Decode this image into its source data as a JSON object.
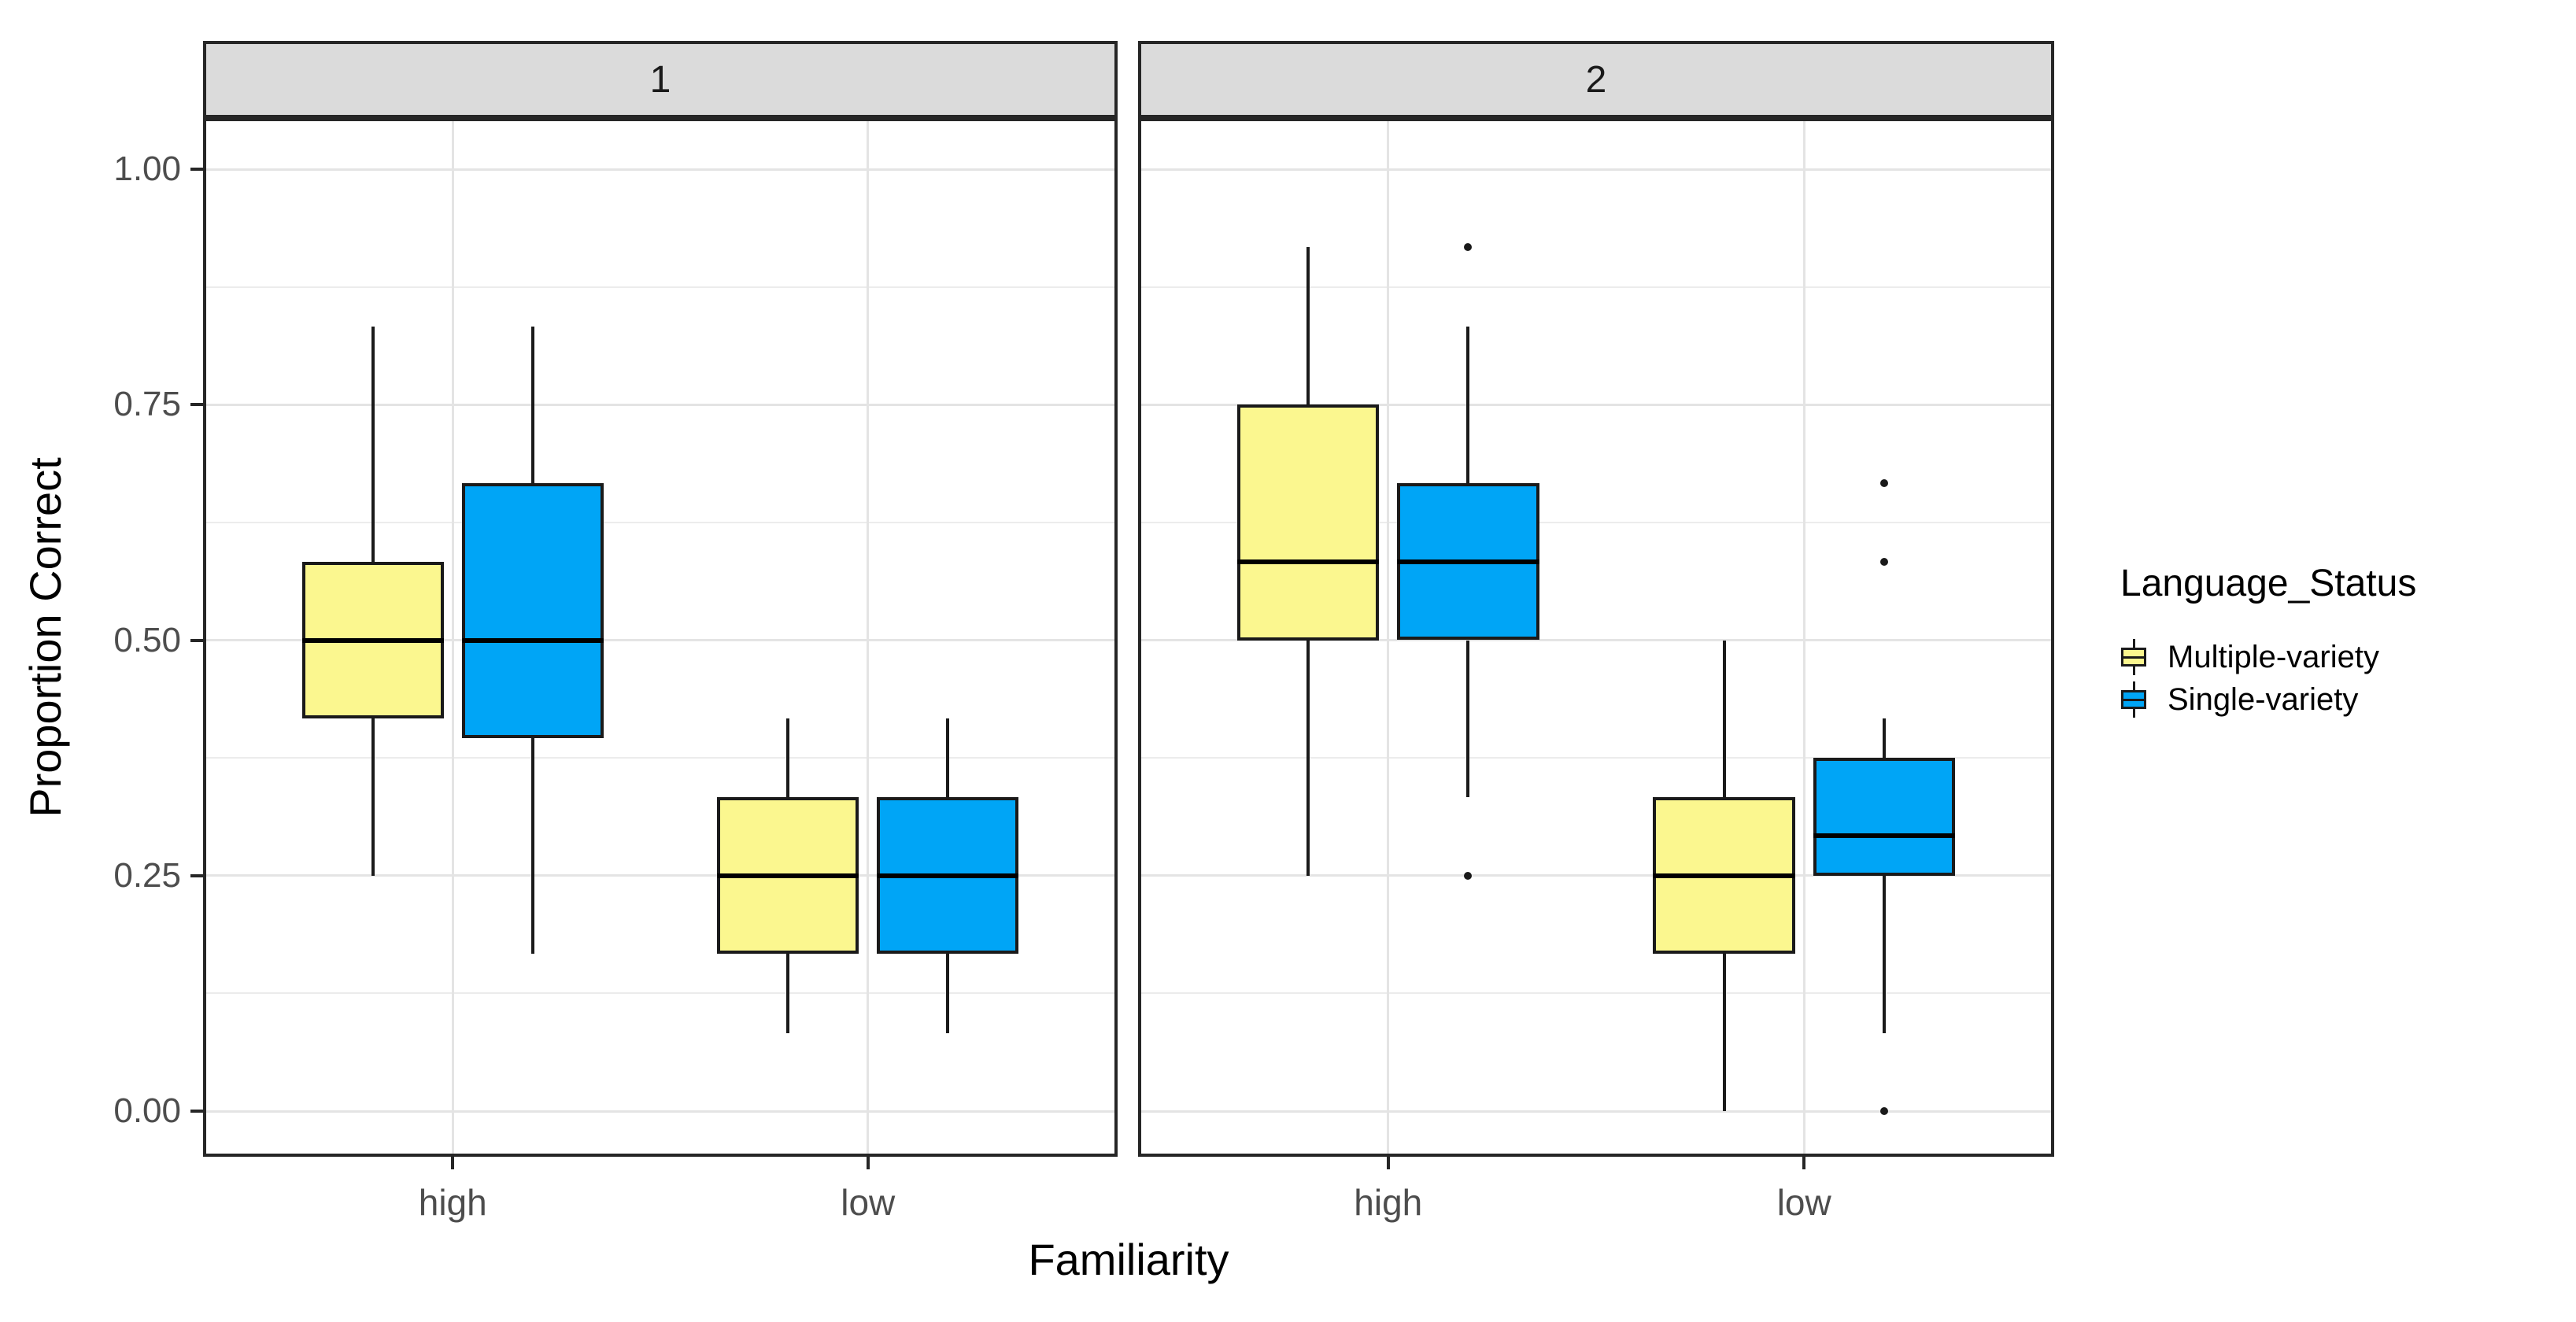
{
  "chart_data": {
    "type": "boxplot",
    "title": "",
    "xlabel": "Familiarity",
    "ylabel": "Proportion Correct",
    "ylim": [
      0,
      1
    ],
    "grid": "on",
    "legend_position": "right",
    "y_axis": {
      "ticks": [
        {
          "value": 1.0,
          "label": "1.00"
        },
        {
          "value": 0.75,
          "label": "0.75"
        },
        {
          "value": 0.5,
          "label": "0.50"
        },
        {
          "value": 0.25,
          "label": "0.25"
        },
        {
          "value": 0.0,
          "label": "0.00"
        }
      ],
      "minor_gridlines": [
        0.875,
        0.625,
        0.375,
        0.125
      ]
    },
    "series": [
      {
        "name": "Multiple-variety",
        "color": "#FBF78F"
      },
      {
        "name": "Single-variety",
        "color": "#00A5F6"
      }
    ],
    "style": {
      "strip_background": "#DBDBDB",
      "panel_border": "#262626",
      "major_gridline_color": "#E4E4E4",
      "minor_gridline_color": "#ECECEC",
      "box_outline": "#1a1a1a",
      "tick_label_color": "#4d4d4d"
    },
    "legend": {
      "title": "Language_Status",
      "items": [
        {
          "label": "Multiple-variety",
          "color": "#FBF78F"
        },
        {
          "label": "Single-variety",
          "color": "#00A5F6"
        }
      ]
    },
    "facets": [
      {
        "label": "1",
        "groups": [
          {
            "category": "high",
            "boxes": [
              {
                "series": "Multiple-variety",
                "min": 0.25,
                "q1": 0.417,
                "median": 0.5,
                "q3": 0.583,
                "max": 0.833,
                "outliers": []
              },
              {
                "series": "Single-variety",
                "min": 0.167,
                "q1": 0.396,
                "median": 0.5,
                "q3": 0.667,
                "max": 0.833,
                "outliers": []
              }
            ]
          },
          {
            "category": "low",
            "boxes": [
              {
                "series": "Multiple-variety",
                "min": 0.083,
                "q1": 0.167,
                "median": 0.25,
                "q3": 0.333,
                "max": 0.417,
                "outliers": []
              },
              {
                "series": "Single-variety",
                "min": 0.083,
                "q1": 0.167,
                "median": 0.25,
                "q3": 0.333,
                "max": 0.417,
                "outliers": []
              }
            ]
          }
        ]
      },
      {
        "label": "2",
        "groups": [
          {
            "category": "high",
            "boxes": [
              {
                "series": "Multiple-variety",
                "min": 0.25,
                "q1": 0.5,
                "median": 0.583,
                "q3": 0.75,
                "max": 0.917,
                "outliers": []
              },
              {
                "series": "Single-variety",
                "min": 0.333,
                "q1": 0.5,
                "median": 0.583,
                "q3": 0.667,
                "max": 0.833,
                "outliers": [
                  0.917,
                  0.25
                ]
              }
            ]
          },
          {
            "category": "low",
            "boxes": [
              {
                "series": "Multiple-variety",
                "min": 0.0,
                "q1": 0.167,
                "median": 0.25,
                "q3": 0.333,
                "max": 0.5,
                "outliers": []
              },
              {
                "series": "Single-variety",
                "min": 0.083,
                "q1": 0.25,
                "median": 0.292,
                "q3": 0.375,
                "max": 0.417,
                "outliers": [
                  0.667,
                  0.583,
                  0.0
                ]
              }
            ]
          }
        ]
      }
    ]
  }
}
